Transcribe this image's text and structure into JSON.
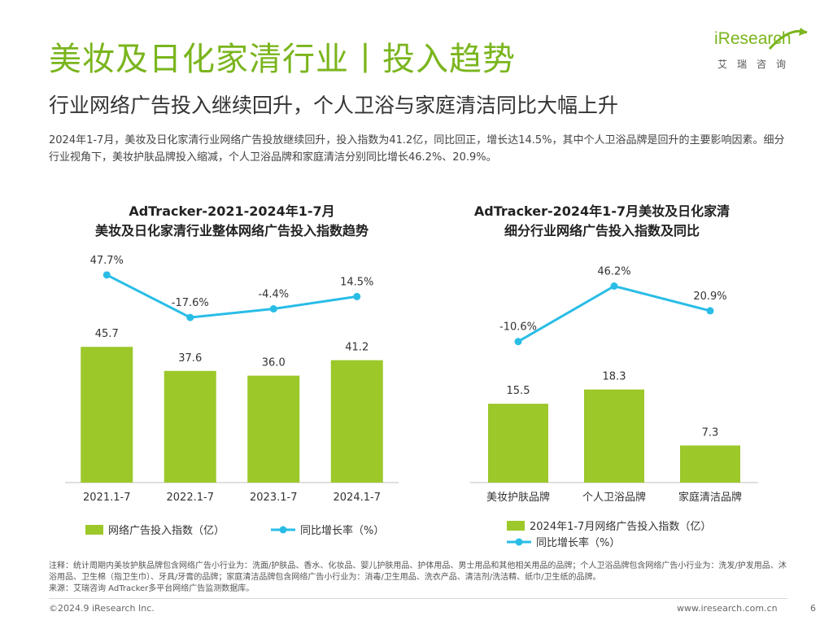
{
  "header": {
    "title": "美妆及日化家清行业丨投入趋势",
    "subtitle": "行业网络广告投入继续回升，个人卫浴与家庭清洁同比大幅上升",
    "logo_text": "iResearch",
    "logo_cn": "艾瑞咨询"
  },
  "summary": "2024年1-7月，美妆及日化家清行业网络广告投放继续回升，投入指数为41.2亿，同比回正，增长达14.5%，其中个人卫浴品牌是回升的主要影响因素。细分行业视角下，美妆护肤品牌投入缩减，个人卫浴品牌和家庭清洁分别同比增长46.2%、20.9%。",
  "chart_data": [
    {
      "type": "bar",
      "title": "AdTracker-2021-2024年1-7月",
      "subtitle": "美妆及日化家清行业整体网络广告投入指数趋势",
      "categories": [
        "2021.1-7",
        "2022.1-7",
        "2023.1-7",
        "2024.1-7"
      ],
      "series": [
        {
          "name": "网络广告投入指数（亿）",
          "type": "bar",
          "values": [
            45.7,
            37.6,
            36.0,
            41.2
          ],
          "labels": [
            "45.7",
            "37.6",
            "36.0",
            "41.2"
          ]
        },
        {
          "name": "同比增长率（%）",
          "type": "line",
          "values": [
            47.7,
            -17.6,
            -4.4,
            14.5
          ],
          "labels": [
            "47.7%",
            "-17.6%",
            "-4.4%",
            "14.5%"
          ]
        }
      ],
      "legend": "bottom",
      "grid": false
    },
    {
      "type": "bar",
      "title": "AdTracker-2024年1-7月美妆及日化家清",
      "subtitle": "细分行业网络广告投入指数及同比",
      "categories": [
        "美妆护肤品牌",
        "个人卫浴品牌",
        "家庭清洁品牌"
      ],
      "series": [
        {
          "name": "2024年1-7月网络广告投入指数（亿）",
          "type": "bar",
          "values": [
            15.5,
            18.3,
            7.3
          ],
          "labels": [
            "15.5",
            "18.3",
            "7.3"
          ]
        },
        {
          "name": "同比增长率（%）",
          "type": "line",
          "values": [
            -10.6,
            46.2,
            20.9
          ],
          "labels": [
            "-10.6%",
            "46.2%",
            "20.9%"
          ]
        }
      ],
      "legend": "bottom",
      "grid": false
    }
  ],
  "colors": {
    "bar": "#9cc82a",
    "line": "#29bde6",
    "title": "#7ab51d"
  },
  "footnote": {
    "note": "注释：统计周期内美妆护肤品牌包含网络广告小行业为：洗面/护肤品、香水、化妆品、婴儿护肤用品、护体用品、男士用品和其他相关用品的品牌；个人卫浴品牌包含网络广告小行业为：洗发/护发用品、沐浴用品、卫生棉（指卫生巾）、牙具/牙膏的品牌；家庭清洁品牌包含网络广告小行业为：消毒/卫生用品、洗衣产品、清洁剂/洗洁精、纸巾/卫生纸的品牌。",
    "source": "来源：艾瑞咨询 AdTracker多平台网络广告监测数据库。"
  },
  "footer": {
    "copyright": "©2024.9 iResearch Inc.",
    "website": "www.iresearch.com.cn",
    "page": "6"
  }
}
